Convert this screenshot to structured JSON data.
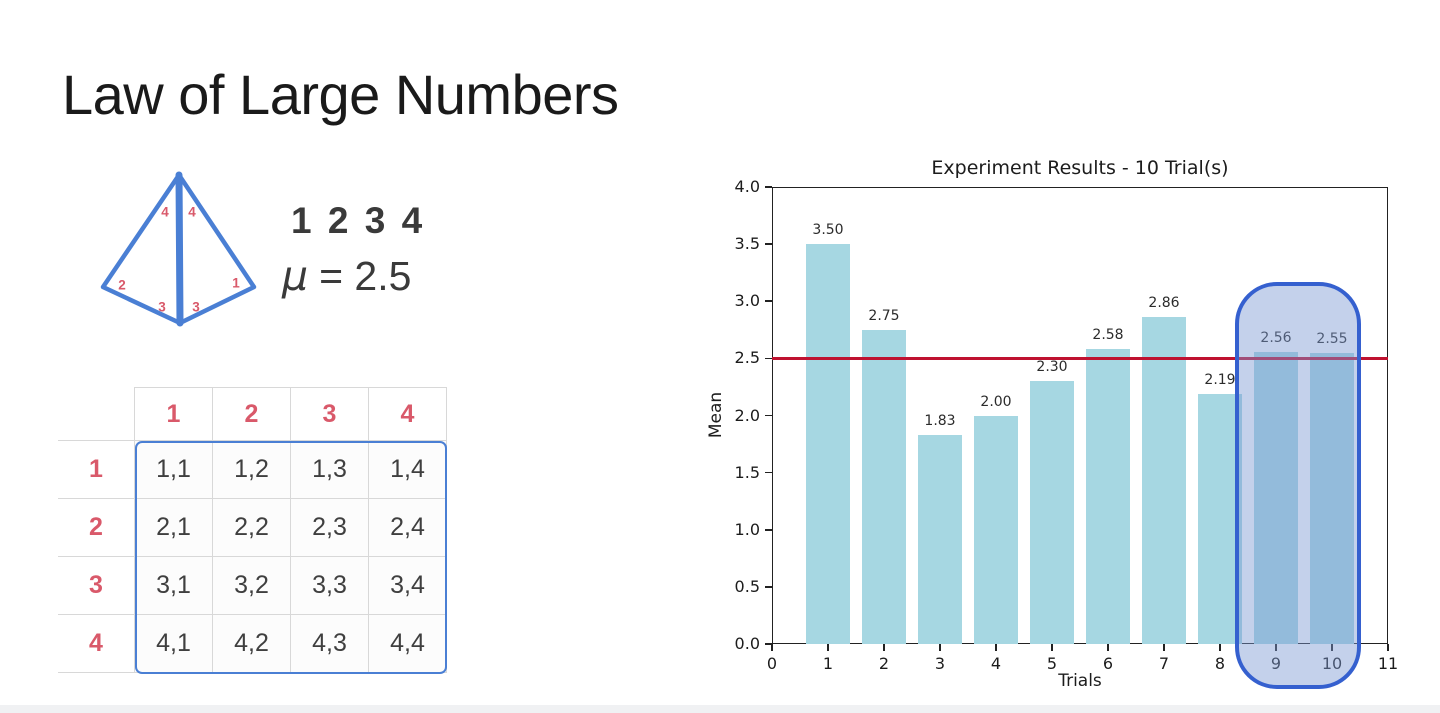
{
  "theme": {
    "background": "#ffffff",
    "red_accent": "#d9596a",
    "blue_accent": "#4a7fd4",
    "text_dark": "#3a3a3a",
    "title_color": "#1a1a1a",
    "grid_line": "#d8d8d8",
    "bottom_strip": "#f0f1f3"
  },
  "slide": {
    "title": "Law of Large Numbers",
    "die": {
      "face_labels": [
        "4",
        "4",
        "2",
        "1",
        "3",
        "3"
      ]
    },
    "outcomes_text": "1 2 3 4",
    "mean_formula": {
      "mu": "μ",
      "value": "= 2.5"
    },
    "outcome_table": {
      "col_headers": [
        "1",
        "2",
        "3",
        "4"
      ],
      "row_headers": [
        "1",
        "2",
        "3",
        "4"
      ],
      "rows": [
        [
          "1,1",
          "1,2",
          "1,3",
          "1,4"
        ],
        [
          "2,1",
          "2,2",
          "2,3",
          "2,4"
        ],
        [
          "3,1",
          "3,2",
          "3,3",
          "3,4"
        ],
        [
          "4,1",
          "4,2",
          "4,3",
          "4,4"
        ]
      ]
    }
  },
  "chart_data": {
    "type": "bar",
    "title": "Experiment Results - 10 Trial(s)",
    "xlabel": "Trials",
    "ylabel": "Mean",
    "x": [
      1,
      2,
      3,
      4,
      5,
      6,
      7,
      8,
      9,
      10
    ],
    "values": [
      3.5,
      2.75,
      1.83,
      2.0,
      2.3,
      2.58,
      2.86,
      2.19,
      2.56,
      2.55
    ],
    "bar_labels": [
      "3.50",
      "2.75",
      "1.83",
      "2.00",
      "2.30",
      "2.58",
      "2.86",
      "2.19",
      "2.56",
      "2.55"
    ],
    "xlim": [
      0,
      11
    ],
    "ylim": [
      0,
      4
    ],
    "x_tick_labels": [
      "0",
      "1",
      "2",
      "3",
      "4",
      "5",
      "6",
      "7",
      "8",
      "9",
      "10",
      "11"
    ],
    "y_tick_labels": [
      "0.0",
      "0.5",
      "1.0",
      "1.5",
      "2.0",
      "2.5",
      "3.0",
      "3.5",
      "4.0"
    ],
    "bar_color": "#a6d7e2",
    "reference_line": {
      "value": 2.5,
      "color": "#bf1230"
    },
    "highlight": {
      "trials": [
        9,
        10
      ],
      "border_color": "#3560cf",
      "fill_color": "rgba(125,152,210,0.45)"
    },
    "grid": false,
    "legend": null
  }
}
